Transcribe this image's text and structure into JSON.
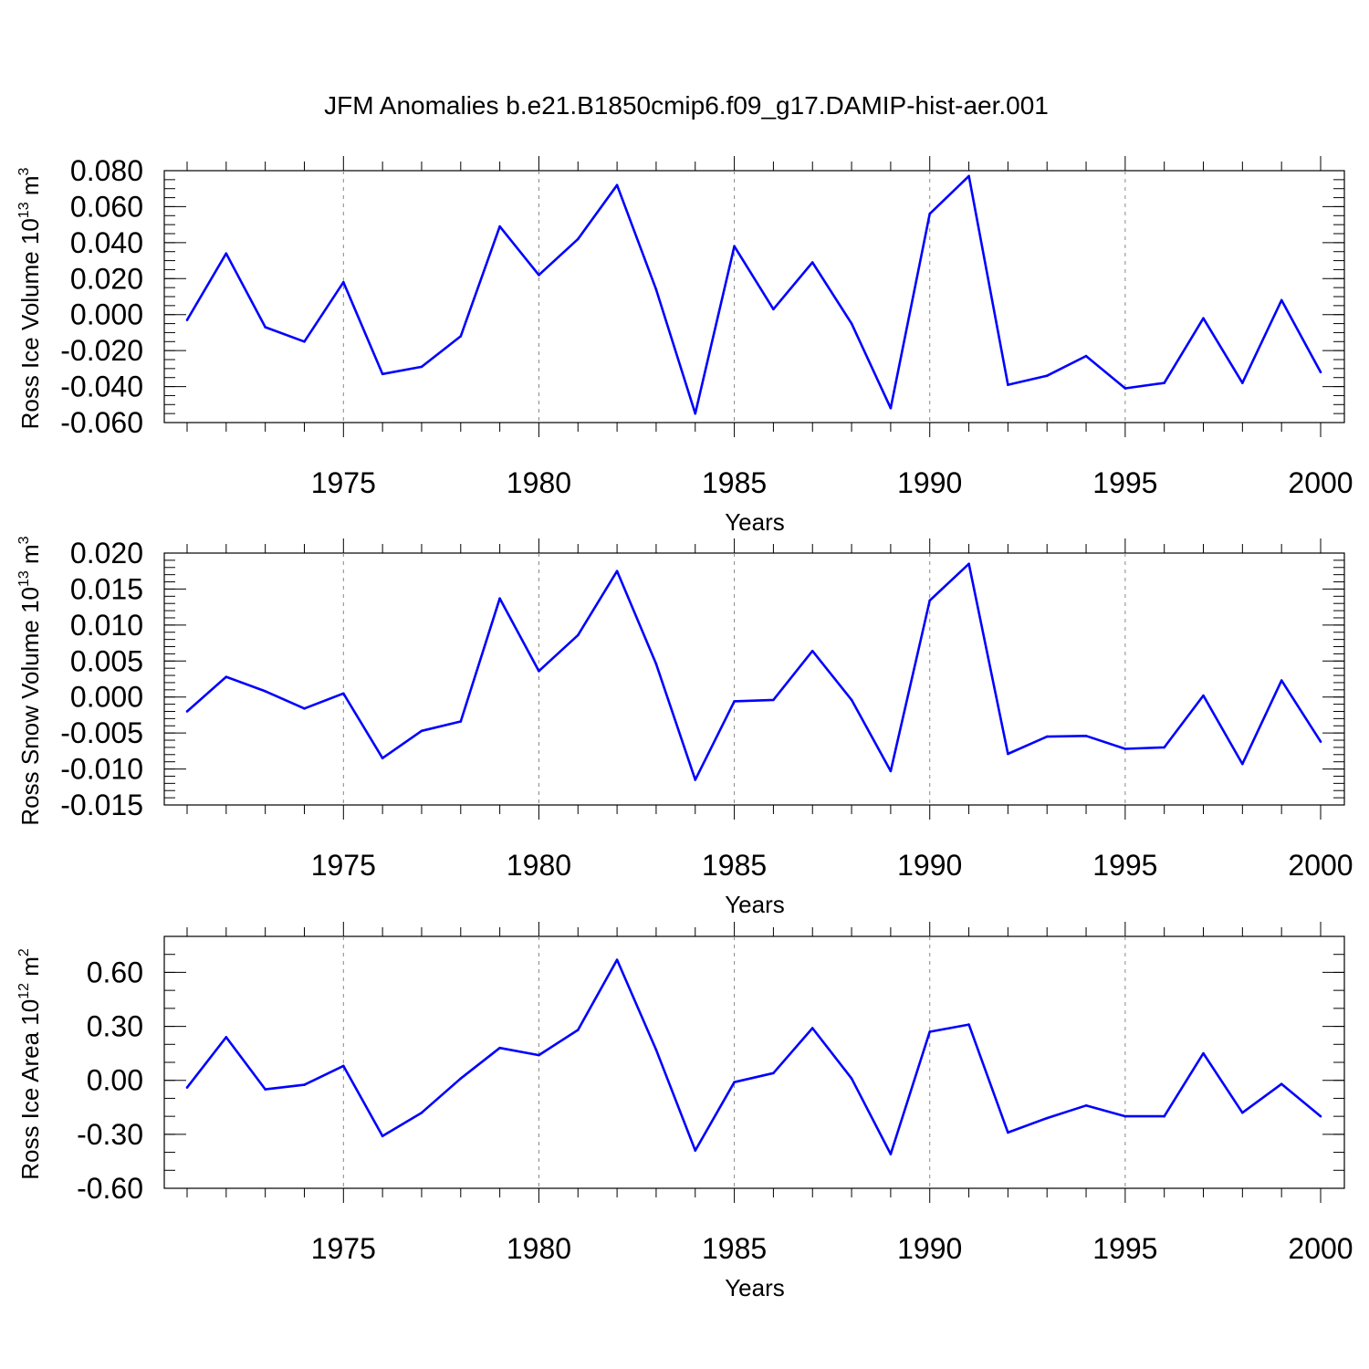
{
  "figure_title": "JFM Anomalies b.e21.B1850cmip6.f09_g17.DAMIP-hist-aer.001",
  "colors": {
    "line": "#0000ff",
    "axis": "#000000",
    "grid": "#888888"
  },
  "chart_data": [
    {
      "type": "line",
      "name": "ross-ice-volume",
      "ylabel_main": "Ross Ice Volume 10",
      "ylabel_exp": "13",
      "ylabel_unit": "m",
      "ylabel_unit_exp": "3",
      "xlabel": "Years",
      "xlim": [
        1971,
        2000
      ],
      "ylim": [
        -0.06,
        0.08
      ],
      "yticks": [
        -0.06,
        -0.04,
        -0.02,
        0.0,
        0.02,
        0.04,
        0.06,
        0.08
      ],
      "ytick_labels": [
        "-0.060",
        "-0.040",
        "-0.020",
        "0.000",
        "0.020",
        "0.040",
        "0.060",
        "0.080"
      ],
      "yminor_step": 0.005,
      "xticks": [
        1975,
        1980,
        1985,
        1990,
        1995,
        2000
      ],
      "xtick_labels": [
        "1975",
        "1980",
        "1985",
        "1990",
        "1995",
        "2000"
      ],
      "grid_x": [
        1975,
        1980,
        1985,
        1990,
        1995
      ],
      "x": [
        1971,
        1972,
        1973,
        1974,
        1975,
        1976,
        1977,
        1978,
        1979,
        1980,
        1981,
        1982,
        1983,
        1984,
        1985,
        1986,
        1987,
        1988,
        1989,
        1990,
        1991,
        1992,
        1993,
        1994,
        1995,
        1996,
        1997,
        1998,
        1999,
        2000
      ],
      "values": [
        -0.003,
        0.034,
        -0.007,
        -0.015,
        0.018,
        -0.033,
        -0.029,
        -0.012,
        0.049,
        0.022,
        0.042,
        0.072,
        0.014,
        -0.055,
        0.038,
        0.003,
        0.029,
        -0.005,
        -0.052,
        0.056,
        0.077,
        -0.039,
        -0.034,
        -0.023,
        -0.041,
        -0.038,
        -0.002,
        -0.038,
        0.008,
        -0.032
      ]
    },
    {
      "type": "line",
      "name": "ross-snow-volume",
      "ylabel_main": "Ross Snow Volume 10",
      "ylabel_exp": "13",
      "ylabel_unit": "m",
      "ylabel_unit_exp": "3",
      "xlabel": "Years",
      "xlim": [
        1971,
        2000
      ],
      "ylim": [
        -0.015,
        0.02
      ],
      "yticks": [
        -0.015,
        -0.01,
        -0.005,
        0.0,
        0.005,
        0.01,
        0.015,
        0.02
      ],
      "ytick_labels": [
        "-0.015",
        "-0.010",
        "-0.005",
        "0.000",
        "0.005",
        "0.010",
        "0.015",
        "0.020"
      ],
      "yminor_step": 0.001,
      "xticks": [
        1975,
        1980,
        1985,
        1990,
        1995,
        2000
      ],
      "xtick_labels": [
        "1975",
        "1980",
        "1985",
        "1990",
        "1995",
        "2000"
      ],
      "grid_x": [
        1975,
        1980,
        1985,
        1990,
        1995
      ],
      "x": [
        1971,
        1972,
        1973,
        1974,
        1975,
        1976,
        1977,
        1978,
        1979,
        1980,
        1981,
        1982,
        1983,
        1984,
        1985,
        1986,
        1987,
        1988,
        1989,
        1990,
        1991,
        1992,
        1993,
        1994,
        1995,
        1996,
        1997,
        1998,
        1999,
        2000
      ],
      "values": [
        -0.002,
        0.0028,
        0.0008,
        -0.0016,
        0.0005,
        -0.0085,
        -0.0047,
        -0.0034,
        0.0137,
        0.0036,
        0.0086,
        0.0175,
        0.0046,
        -0.0115,
        -0.0006,
        -0.0004,
        0.0064,
        -0.0004,
        -0.0103,
        0.0134,
        0.0185,
        -0.0079,
        -0.0055,
        -0.0054,
        -0.0072,
        -0.007,
        0.0002,
        -0.0093,
        0.0023,
        -0.0062
      ]
    },
    {
      "type": "line",
      "name": "ross-ice-area",
      "ylabel_main": "Ross Ice Area 10",
      "ylabel_exp": "12",
      "ylabel_unit": "m",
      "ylabel_unit_exp": "2",
      "xlabel": "Years",
      "xlim": [
        1971,
        2000
      ],
      "ylim": [
        -0.6,
        0.8
      ],
      "yticks": [
        -0.6,
        -0.3,
        0.0,
        0.3,
        0.6
      ],
      "ytick_labels": [
        "-0.60",
        "-0.30",
        "0.00",
        "0.30",
        "0.60"
      ],
      "yminor_step": 0.1,
      "xticks": [
        1975,
        1980,
        1985,
        1990,
        1995,
        2000
      ],
      "xtick_labels": [
        "1975",
        "1980",
        "1985",
        "1990",
        "1995",
        "2000"
      ],
      "grid_x": [
        1975,
        1980,
        1985,
        1990,
        1995
      ],
      "x": [
        1971,
        1972,
        1973,
        1974,
        1975,
        1976,
        1977,
        1978,
        1979,
        1980,
        1981,
        1982,
        1983,
        1984,
        1985,
        1986,
        1987,
        1988,
        1989,
        1990,
        1991,
        1992,
        1993,
        1994,
        1995,
        1996,
        1997,
        1998,
        1999,
        2000
      ],
      "values": [
        -0.04,
        0.24,
        -0.05,
        -0.025,
        0.08,
        -0.31,
        -0.18,
        0.01,
        0.18,
        0.14,
        0.28,
        0.67,
        0.17,
        -0.39,
        -0.01,
        0.04,
        0.29,
        0.01,
        -0.41,
        0.27,
        0.31,
        -0.29,
        -0.21,
        -0.14,
        -0.2,
        -0.2,
        0.15,
        -0.18,
        -0.02,
        -0.2
      ]
    }
  ]
}
